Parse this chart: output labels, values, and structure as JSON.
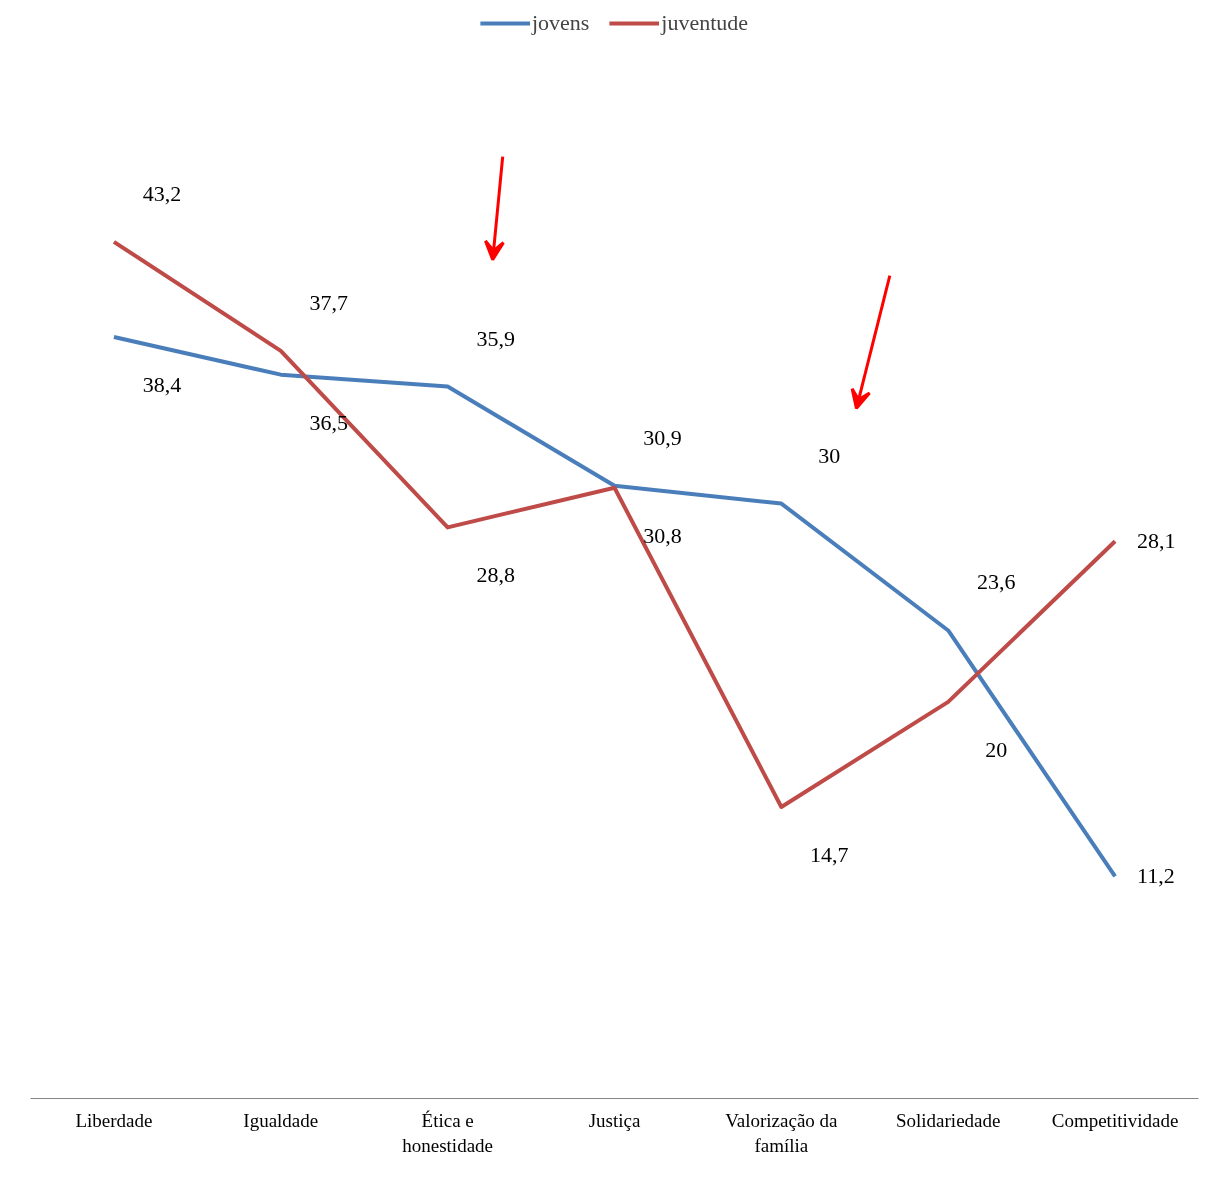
{
  "chart_data": {
    "type": "line",
    "categories": [
      "Liberdade",
      "Igualdade",
      "Ética e honestidade",
      "Justiça",
      "Valorização da família",
      "Solidariedade",
      "Competitividade"
    ],
    "series": [
      {
        "name": "jovens",
        "color": "#4a7ebb",
        "values": [
          38.4,
          36.5,
          35.9,
          30.9,
          30,
          23.6,
          11.2
        ],
        "value_labels": [
          "38,4",
          "36,5",
          "35,9",
          "30,9",
          "30",
          "23,6",
          "11,2"
        ]
      },
      {
        "name": "juventude",
        "color": "#be4b48",
        "values": [
          43.2,
          37.7,
          28.8,
          30.8,
          14.7,
          20,
          28.1
        ],
        "value_labels": [
          "43,2",
          "37,7",
          "28,8",
          "30,8",
          "14,7",
          "20",
          "28,1"
        ]
      }
    ],
    "tick_labels": "x",
    "legend": "top",
    "grid": false,
    "marker": "none",
    "line_style": "solid"
  }
}
